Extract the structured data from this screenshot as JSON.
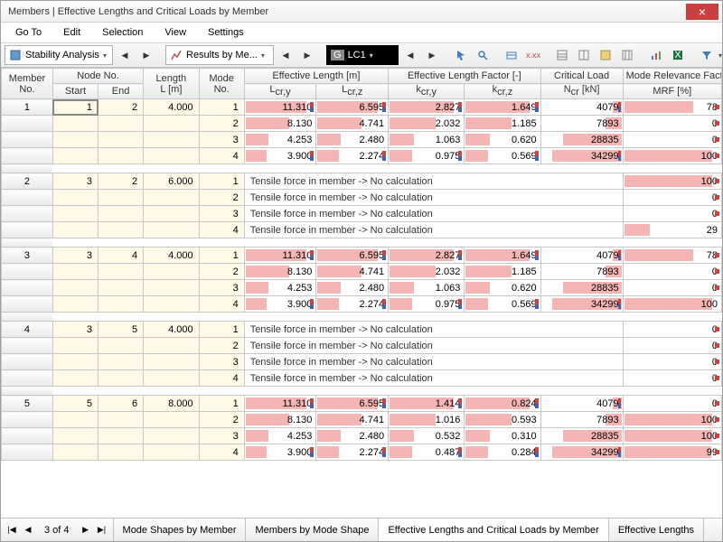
{
  "window": {
    "title": "Members | Effective Lengths and Critical Loads by Member"
  },
  "menu": [
    "Go To",
    "Edit",
    "Selection",
    "View",
    "Settings"
  ],
  "toolbar": {
    "dd1": "Stability Analysis",
    "dd2": "Results by Me...",
    "lc_prefix": "G",
    "lc": "LC1",
    "lc_suffix": "."
  },
  "headers": {
    "member_no": "Member\nNo.",
    "node_no": "Node No.",
    "start": "Start",
    "end": "End",
    "length": "Length\nL [m]",
    "mode_no": "Mode\nNo.",
    "eff_len": "Effective Length [m]",
    "lcy": "Lcr,y",
    "lcz": "Lcr,z",
    "eff_fac": "Effective Length Factor [-]",
    "kcy": "kcr,y",
    "kcz": "kcr,z",
    "crit": "Critical Load",
    "ncr": "Ncr [kN]",
    "mrf_h": "Mode Relevance Factor",
    "mrf": "MRF [%]"
  },
  "groups": [
    {
      "member": 1,
      "start": 1,
      "end": 2,
      "length": "4.000",
      "modes": [
        {
          "m": 1,
          "lcy": "11.310",
          "lcz": "6.595",
          "kcy": "2.827",
          "kcz": "1.649",
          "ncr": "4079",
          "mrf": "78",
          "mark": true,
          "ncr_mark": true,
          "mrf_dot": true,
          "lcy_b": 100,
          "lcz_b": 100,
          "kcy_b": 100,
          "kcz_b": 100,
          "ncr_b": 12,
          "mrf_b": 78
        },
        {
          "m": 2,
          "lcy": "8.130",
          "lcz": "4.741",
          "kcy": "2.032",
          "kcz": "1.185",
          "ncr": "7893",
          "mrf": "0",
          "lcy_b": 72,
          "lcz_b": 72,
          "kcy_b": 72,
          "kcz_b": 72,
          "ncr_b": 23,
          "mrf_b": 0,
          "mrf_dot": true
        },
        {
          "m": 3,
          "lcy": "4.253",
          "lcz": "2.480",
          "kcy": "1.063",
          "kcz": "0.620",
          "ncr": "28835",
          "mrf": "0",
          "lcy_b": 38,
          "lcz_b": 38,
          "kcy_b": 38,
          "kcz_b": 38,
          "ncr_b": 84,
          "mrf_b": 0,
          "mrf_dot": true
        },
        {
          "m": 4,
          "lcy": "3.900",
          "lcz": "2.274",
          "kcy": "0.975",
          "kcz": "0.569",
          "ncr": "34299",
          "mrf": "100",
          "mark": true,
          "ncr_mark": true,
          "lcy_b": 35,
          "lcz_b": 35,
          "kcy_b": 35,
          "kcz_b": 35,
          "ncr_b": 100,
          "mrf_b": 100,
          "mrf_dot": true
        }
      ]
    },
    {
      "member": 2,
      "start": 3,
      "end": 2,
      "length": "6.000",
      "tensile": true,
      "modes": [
        {
          "m": 1,
          "mrf": "100",
          "mrf_b": 100,
          "mrf_dot": true
        },
        {
          "m": 2,
          "mrf": "0",
          "mrf_b": 0,
          "mrf_dot": true
        },
        {
          "m": 3,
          "mrf": "0",
          "mrf_b": 0,
          "mrf_dot": true
        },
        {
          "m": 4,
          "mrf": "29",
          "mrf_b": 29
        }
      ]
    },
    {
      "member": 3,
      "start": 3,
      "end": 4,
      "length": "4.000",
      "modes": [
        {
          "m": 1,
          "lcy": "11.310",
          "lcz": "6.595",
          "kcy": "2.827",
          "kcz": "1.649",
          "ncr": "4079",
          "mrf": "78",
          "mark": true,
          "ncr_mark": true,
          "mrf_dot": true,
          "lcy_b": 100,
          "lcz_b": 100,
          "kcy_b": 100,
          "kcz_b": 100,
          "ncr_b": 12,
          "mrf_b": 78
        },
        {
          "m": 2,
          "lcy": "8.130",
          "lcz": "4.741",
          "kcy": "2.032",
          "kcz": "1.185",
          "ncr": "7893",
          "mrf": "0",
          "lcy_b": 72,
          "lcz_b": 72,
          "kcy_b": 72,
          "kcz_b": 72,
          "ncr_b": 23,
          "mrf_b": 0,
          "mrf_dot": true
        },
        {
          "m": 3,
          "lcy": "4.253",
          "lcz": "2.480",
          "kcy": "1.063",
          "kcz": "0.620",
          "ncr": "28835",
          "mrf": "0",
          "lcy_b": 38,
          "lcz_b": 38,
          "kcy_b": 38,
          "kcz_b": 38,
          "ncr_b": 84,
          "mrf_b": 0,
          "mrf_dot": true
        },
        {
          "m": 4,
          "lcy": "3.900",
          "lcz": "2.274",
          "kcy": "0.975",
          "kcz": "0.569",
          "ncr": "34299",
          "mrf": "100",
          "mark": true,
          "ncr_mark": true,
          "lcy_b": 35,
          "lcz_b": 35,
          "kcy_b": 35,
          "kcz_b": 35,
          "ncr_b": 100,
          "mrf_b": 100
        }
      ]
    },
    {
      "member": 4,
      "start": 3,
      "end": 5,
      "length": "4.000",
      "tensile": true,
      "modes": [
        {
          "m": 1,
          "mrf": "0",
          "mrf_b": 0,
          "mrf_dot": true
        },
        {
          "m": 2,
          "mrf": "0",
          "mrf_b": 0,
          "mrf_dot": true
        },
        {
          "m": 3,
          "mrf": "0",
          "mrf_b": 0,
          "mrf_dot": true
        },
        {
          "m": 4,
          "mrf": "0",
          "mrf_b": 0,
          "mrf_dot": true
        }
      ]
    },
    {
      "member": 5,
      "start": 5,
      "end": 6,
      "length": "8.000",
      "modes": [
        {
          "m": 1,
          "lcy": "11.310",
          "lcz": "6.595",
          "kcy": "1.414",
          "kcz": "0.824",
          "ncr": "4079",
          "mrf": "0",
          "mark": true,
          "ncr_mark": true,
          "mrf_dot": true,
          "lcy_b": 100,
          "lcz_b": 100,
          "kcy_b": 100,
          "kcz_b": 100,
          "ncr_b": 12,
          "mrf_b": 0
        },
        {
          "m": 2,
          "lcy": "8.130",
          "lcz": "4.741",
          "kcy": "1.016",
          "kcz": "0.593",
          "ncr": "7893",
          "mrf": "100",
          "lcy_b": 72,
          "lcz_b": 72,
          "kcy_b": 72,
          "kcz_b": 72,
          "ncr_b": 23,
          "mrf_b": 100,
          "mrf_dot": true
        },
        {
          "m": 3,
          "lcy": "4.253",
          "lcz": "2.480",
          "kcy": "0.532",
          "kcz": "0.310",
          "ncr": "28835",
          "mrf": "100",
          "lcy_b": 38,
          "lcz_b": 38,
          "kcy_b": 38,
          "kcz_b": 38,
          "ncr_b": 84,
          "mrf_b": 100,
          "mrf_dot": true
        },
        {
          "m": 4,
          "lcy": "3.900",
          "lcz": "2.274",
          "kcy": "0.487",
          "kcz": "0.284",
          "ncr": "34299",
          "mrf": "99",
          "mark": true,
          "ncr_mark": true,
          "lcy_b": 35,
          "lcz_b": 35,
          "kcy_b": 35,
          "kcz_b": 35,
          "ncr_b": 100,
          "mrf_b": 99,
          "mrf_dot": true
        }
      ]
    }
  ],
  "tensile_text": "Tensile force in member -> No calculation",
  "footer": {
    "page": "3 of 4",
    "tabs": [
      "Mode Shapes by Member",
      "Members by Mode Shape",
      "Effective Lengths and Critical Loads by Member",
      "Effective Lengths"
    ],
    "active_tab": 2
  },
  "colors": {
    "bar": "#f5b5b5",
    "marker_red": "#d04040",
    "marker_blue": "#4060c0",
    "header_grad_top": "#fdfdfd",
    "header_grad_bot": "#eaeaea",
    "cream": "#fff9e8",
    "border": "#c8c8c8"
  }
}
